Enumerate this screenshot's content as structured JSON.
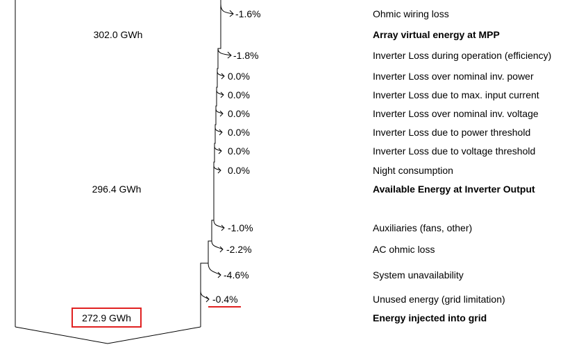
{
  "energies": [
    {
      "value": "302.0 GWh",
      "label": "Array virtual energy at MPP"
    },
    {
      "value": "296.4 GWh",
      "label": "Available Energy at Inverter Output"
    },
    {
      "value": "272.9 GWh",
      "label": "Energy injected into grid"
    }
  ],
  "losses": [
    {
      "pct": "-1.6%",
      "label": "Ohmic wiring loss"
    },
    {
      "pct": "-1.8%",
      "label": "Inverter Loss during operation (efficiency)"
    },
    {
      "pct": "0.0%",
      "label": "Inverter Loss over nominal inv. power"
    },
    {
      "pct": "0.0%",
      "label": "Inverter Loss due to max. input current"
    },
    {
      "pct": "0.0%",
      "label": "Inverter Loss over nominal inv. voltage"
    },
    {
      "pct": "0.0%",
      "label": "Inverter Loss due to power threshold"
    },
    {
      "pct": "0.0%",
      "label": "Inverter Loss due to voltage threshold"
    },
    {
      "pct": "0.0%",
      "label": "Night consumption"
    },
    {
      "pct": "-1.0%",
      "label": "Auxiliaries (fans, other)"
    },
    {
      "pct": "-2.2%",
      "label": "AC ohmic loss"
    },
    {
      "pct": "-4.6%",
      "label": "System unavailability"
    },
    {
      "pct": "-0.4%",
      "label": "Unused energy (grid limitation)"
    }
  ],
  "colors": {
    "highlight": "#e02020",
    "line": "#000000"
  }
}
